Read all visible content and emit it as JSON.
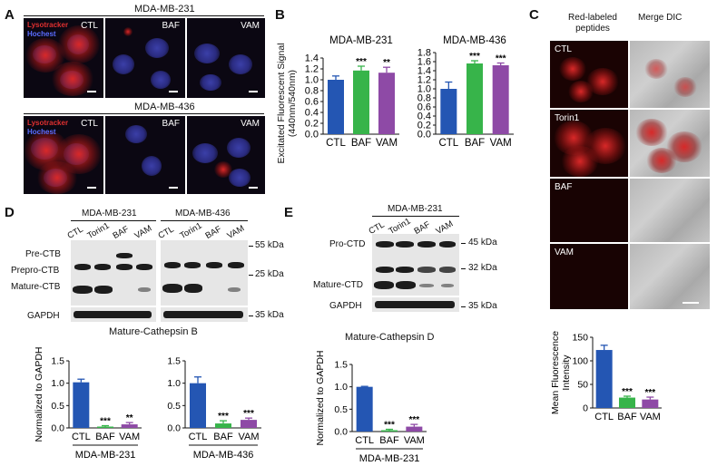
{
  "panelA": {
    "letter": "A",
    "row1_title": "MDA-MB-231",
    "row2_title": "MDA-MB-436",
    "stain1": "Lysotracker",
    "stain2": "Hochest",
    "conditions": [
      "CTL",
      "BAF",
      "VAM"
    ]
  },
  "panelB": {
    "letter": "B",
    "ylabel_line1": "Excitated Fluorescent Signal",
    "ylabel_line2": "(440nm/540nm)"
  },
  "panelC": {
    "letter": "C",
    "col1_line1": "Red-labeled",
    "col1_line2": "peptides",
    "col2": "Merge DIC",
    "rows": [
      "CTL",
      "Torin1",
      "BAF",
      "VAM"
    ]
  },
  "panelD": {
    "letter": "D",
    "group1": "MDA-MB-231",
    "group2": "MDA-MB-436",
    "lanes": [
      "CTL",
      "Torin1",
      "BAF",
      "VAM"
    ],
    "bands": [
      "Pre-CTB",
      "Prepro-CTB",
      "Mature-CTB",
      "GAPDH"
    ],
    "markers": [
      "55 kDa",
      "25 kDa",
      "35 kDa"
    ],
    "chart_title": "Mature-Cathepsin B"
  },
  "panelE": {
    "letter": "E",
    "group": "MDA-MB-231",
    "lanes": [
      "CTL",
      "Torin1",
      "BAF",
      "VAM"
    ],
    "bands": [
      "Pro-CTD",
      "Mature-CTD",
      "GAPDH"
    ],
    "markers": [
      "45 kDa",
      "32 kDa",
      "35 kDa"
    ],
    "chart_title": "Mature-Cathepsin D"
  },
  "chart_data": [
    {
      "id": "B1",
      "type": "bar",
      "title": "MDA-MB-231",
      "categories": [
        "CTL",
        "BAF",
        "VAM"
      ],
      "values": [
        1.0,
        1.17,
        1.13
      ],
      "errors": [
        0.07,
        0.08,
        0.1
      ],
      "signif": [
        "",
        "***",
        "**"
      ],
      "colors": [
        "#2456b3",
        "#37b44a",
        "#8e4aa6"
      ],
      "ylim": [
        0.0,
        1.4
      ],
      "yticks": [
        "0.0",
        "0.2",
        "0.4",
        "0.6",
        "0.8",
        "1.0",
        "1.2",
        "1.4"
      ],
      "ylabel": "Excitated Fluorescent Signal (440nm/540nm)",
      "group_label": ""
    },
    {
      "id": "B2",
      "type": "bar",
      "title": "MDA-MB-436",
      "categories": [
        "CTL",
        "BAF",
        "VAM"
      ],
      "values": [
        1.0,
        1.56,
        1.52
      ],
      "errors": [
        0.15,
        0.06,
        0.05
      ],
      "signif": [
        "",
        "***",
        "***"
      ],
      "colors": [
        "#2456b3",
        "#37b44a",
        "#8e4aa6"
      ],
      "ylim": [
        0.0,
        1.8
      ],
      "yticks": [
        "0.0",
        "0.2",
        "0.4",
        "0.6",
        "0.8",
        "1.0",
        "1.2",
        "1.4",
        "1.6",
        "1.8"
      ],
      "ylabel": "",
      "group_label": ""
    },
    {
      "id": "C1",
      "type": "bar",
      "title": "",
      "categories": [
        "CTL",
        "BAF",
        "VAM"
      ],
      "values": [
        123,
        22,
        18
      ],
      "errors": [
        10,
        3,
        5
      ],
      "signif": [
        "",
        "***",
        "***"
      ],
      "colors": [
        "#2456b3",
        "#37b44a",
        "#8e4aa6"
      ],
      "ylim": [
        0,
        150
      ],
      "yticks": [
        "0",
        "50",
        "100",
        "150"
      ],
      "ylabel": "Mean Fluorescence Intensity",
      "group_label": ""
    },
    {
      "id": "D1",
      "type": "bar",
      "title": "",
      "categories": [
        "CTL",
        "BAF",
        "VAM"
      ],
      "values": [
        1.02,
        0.03,
        0.08
      ],
      "errors": [
        0.07,
        0.02,
        0.04
      ],
      "signif": [
        "",
        "***",
        "**"
      ],
      "colors": [
        "#2456b3",
        "#37b44a",
        "#8e4aa6"
      ],
      "ylim": [
        0.0,
        1.5
      ],
      "yticks": [
        "0.0",
        "0.5",
        "1.0",
        "1.5"
      ],
      "ylabel": "Normalized to GAPDH",
      "group_label": "MDA-MB-231"
    },
    {
      "id": "D2",
      "type": "bar",
      "title": "",
      "categories": [
        "CTL",
        "BAF",
        "VAM"
      ],
      "values": [
        1.0,
        0.1,
        0.18
      ],
      "errors": [
        0.14,
        0.06,
        0.04
      ],
      "signif": [
        "",
        "***",
        "***"
      ],
      "colors": [
        "#2456b3",
        "#37b44a",
        "#8e4aa6"
      ],
      "ylim": [
        0.0,
        1.5
      ],
      "yticks": [
        "0.0",
        "0.5",
        "1.0",
        "1.5"
      ],
      "ylabel": "",
      "group_label": "MDA-MB-436"
    },
    {
      "id": "E1",
      "type": "bar",
      "title": "",
      "categories": [
        "CTL",
        "BAF",
        "VAM"
      ],
      "values": [
        1.0,
        0.03,
        0.11
      ],
      "errors": [
        0.01,
        0.02,
        0.05
      ],
      "signif": [
        "",
        "***",
        "***"
      ],
      "colors": [
        "#2456b3",
        "#37b44a",
        "#8e4aa6"
      ],
      "ylim": [
        0.0,
        1.5
      ],
      "yticks": [
        "0.0",
        "0.5",
        "1.0",
        "1.5"
      ],
      "ylabel": "Normalized to GAPDH",
      "group_label": "MDA-MB-231"
    }
  ]
}
